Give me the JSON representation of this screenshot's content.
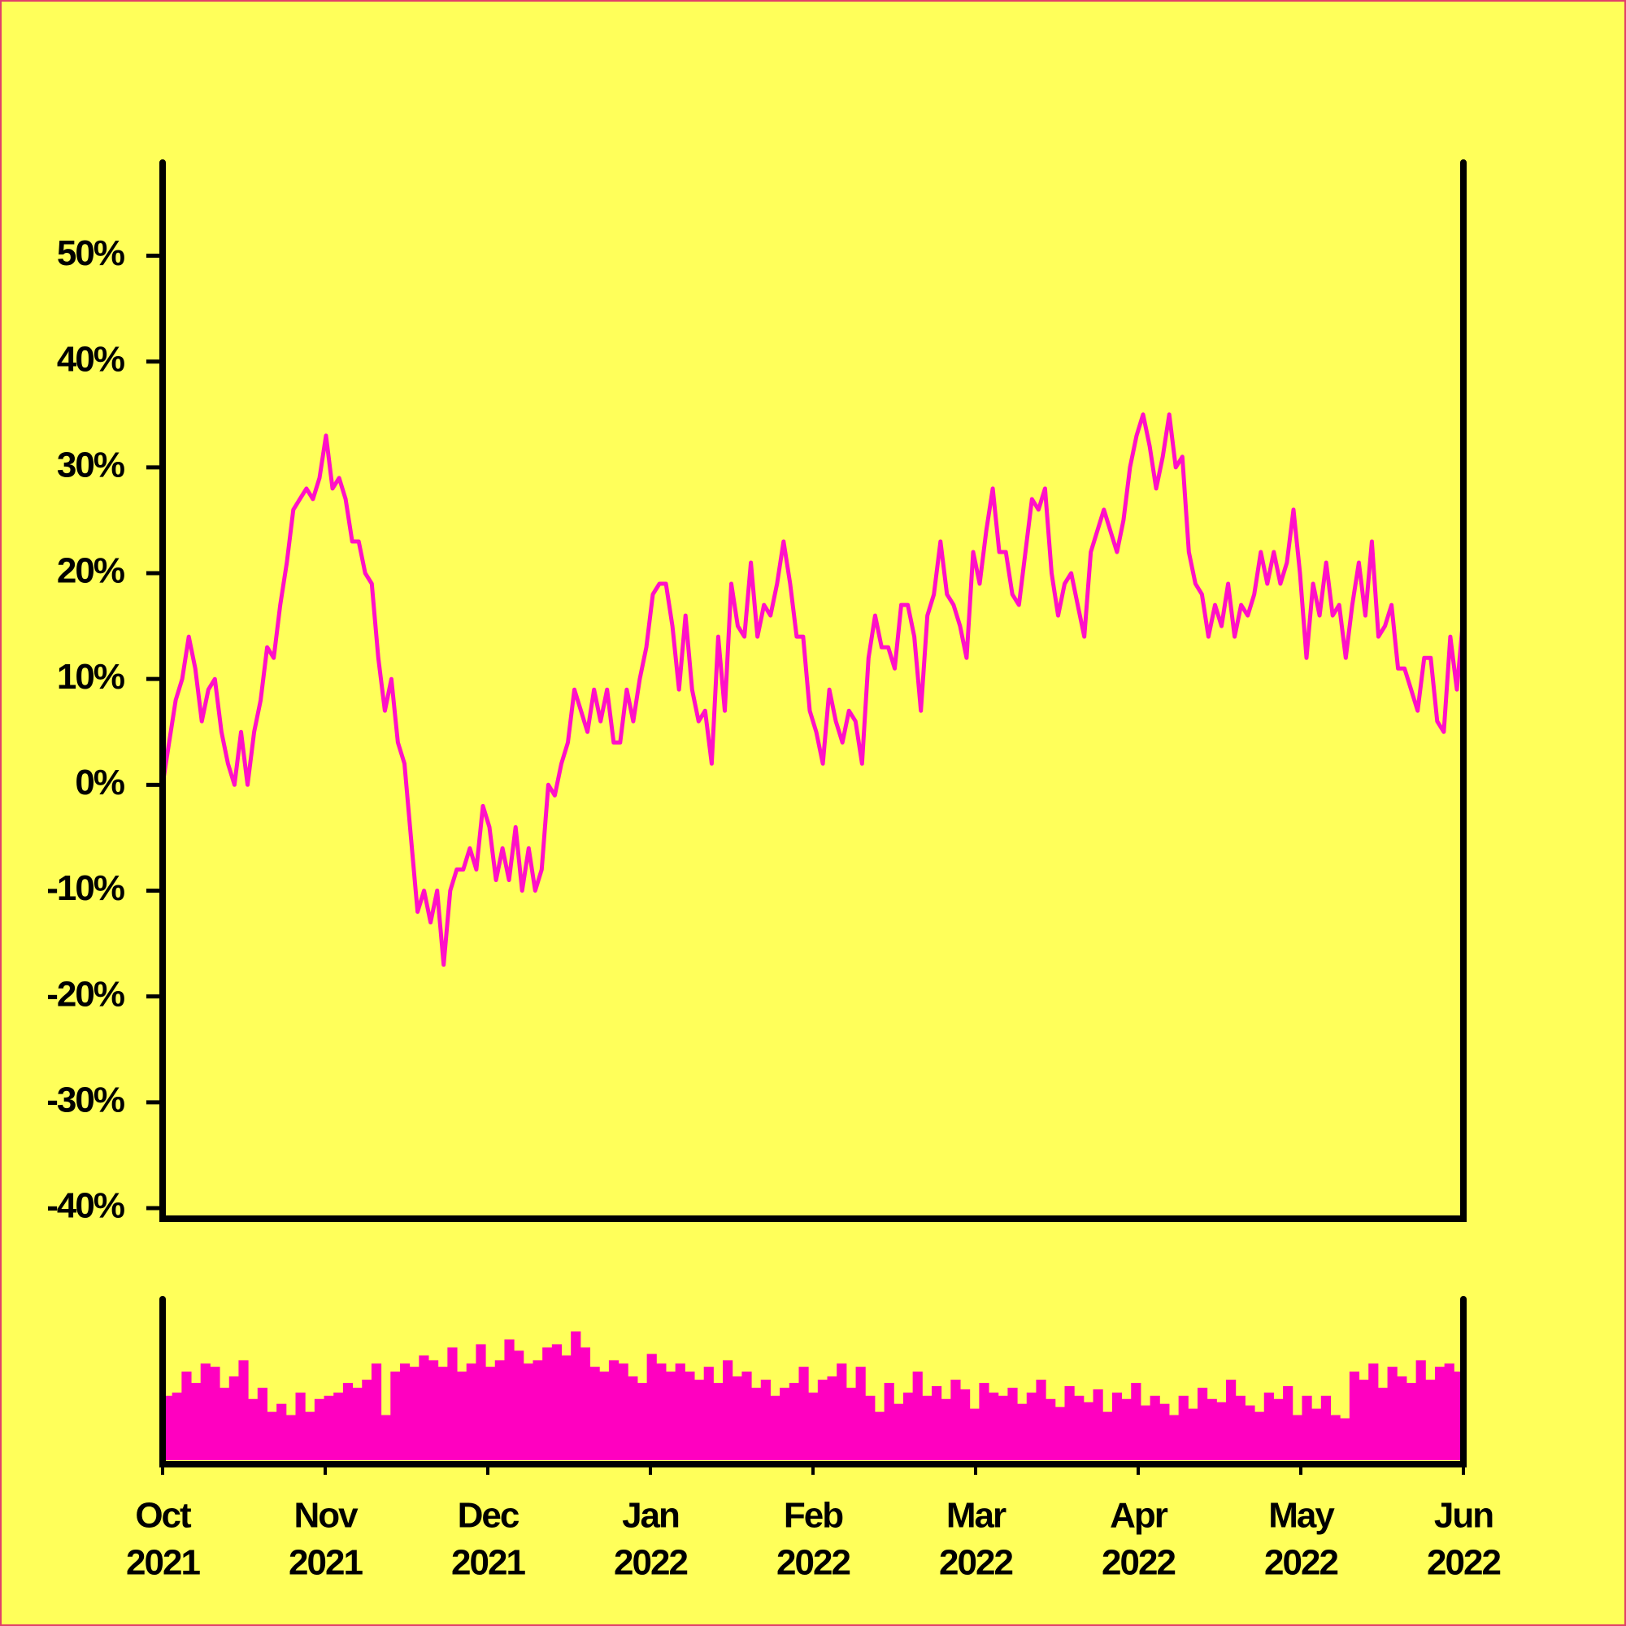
{
  "chart_data": [
    {
      "type": "line",
      "ylim": [
        -41,
        58.8
      ],
      "yticks": [
        {
          "value": -40,
          "label": "-40%"
        },
        {
          "value": -30,
          "label": "-30%"
        },
        {
          "value": -20,
          "label": "-20%"
        },
        {
          "value": -10,
          "label": "-10%"
        },
        {
          "value": 0,
          "label": "0%"
        },
        {
          "value": 10,
          "label": "10%"
        },
        {
          "value": 20,
          "label": "20%"
        },
        {
          "value": 30,
          "label": "30%"
        },
        {
          "value": 40,
          "label": "40%"
        },
        {
          "value": 50,
          "label": "50%"
        }
      ],
      "grid": false,
      "series": [
        {
          "color": "#ff10c8",
          "values": [
            0,
            4,
            8,
            10,
            14,
            11,
            6,
            9,
            10,
            5,
            2,
            0,
            5,
            0,
            5,
            8,
            13,
            12,
            17,
            21,
            26,
            27,
            28,
            27,
            29,
            33,
            28,
            29,
            27,
            23,
            23,
            20,
            19,
            12,
            7,
            10,
            4,
            2,
            -5,
            -12,
            -10,
            -13,
            -10,
            -17,
            -10,
            -8,
            -8,
            -6,
            -8,
            -2,
            -4,
            -9,
            -6,
            -9,
            -4,
            -10,
            -6,
            -10,
            -8,
            0,
            -1,
            2,
            4,
            9,
            7,
            5,
            9,
            6,
            9,
            4,
            4,
            9,
            6,
            10,
            13,
            18,
            19,
            19,
            15,
            9,
            16,
            9,
            6,
            7,
            2,
            14,
            7,
            19,
            15,
            14,
            21,
            14,
            17,
            16,
            19,
            23,
            19,
            14,
            14,
            7,
            5,
            2,
            9,
            6,
            4,
            7,
            6,
            2,
            12,
            16,
            13,
            13,
            11,
            17,
            17,
            14,
            7,
            16,
            18,
            23,
            18,
            17,
            15,
            12,
            22,
            19,
            24,
            28,
            22,
            22,
            18,
            17,
            22,
            27,
            26,
            28,
            20,
            16,
            19,
            20,
            17,
            14,
            22,
            24,
            26,
            24,
            22,
            25,
            30,
            33,
            35,
            32,
            28,
            31,
            35,
            30,
            31,
            22,
            19,
            18,
            14,
            17,
            15,
            19,
            14,
            17,
            16,
            18,
            22,
            19,
            22,
            19,
            21,
            26,
            20,
            12,
            19,
            16,
            21,
            16,
            17,
            12,
            17,
            21,
            16,
            23,
            14,
            15,
            17,
            11,
            11,
            9,
            7,
            12,
            12,
            6,
            5,
            14,
            9,
            16
          ]
        }
      ],
      "xtick_labels": [
        [
          "Oct",
          "2021"
        ],
        [
          "Nov",
          "2021"
        ],
        [
          "Dec",
          "2021"
        ],
        [
          "Jan",
          "2022"
        ],
        [
          "Feb",
          "2022"
        ],
        [
          "Mar",
          "2022"
        ],
        [
          "Apr",
          "2022"
        ],
        [
          "May",
          "2022"
        ],
        [
          "Jun",
          "2022"
        ]
      ]
    },
    {
      "type": "bar",
      "ylim": [
        0,
        100
      ],
      "color": "#ff00c0",
      "values": [
        40,
        42,
        55,
        48,
        60,
        58,
        45,
        52,
        62,
        38,
        45,
        30,
        35,
        28,
        42,
        30,
        38,
        40,
        42,
        48,
        45,
        50,
        60,
        28,
        55,
        60,
        58,
        65,
        62,
        58,
        70,
        55,
        60,
        72,
        58,
        62,
        75,
        68,
        60,
        62,
        70,
        72,
        65,
        80,
        70,
        58,
        55,
        62,
        60,
        52,
        48,
        66,
        60,
        55,
        60,
        55,
        50,
        58,
        48,
        62,
        52,
        55,
        45,
        50,
        40,
        45,
        48,
        58,
        42,
        50,
        52,
        60,
        45,
        58,
        40,
        30,
        48,
        35,
        42,
        55,
        40,
        46,
        38,
        50,
        44,
        32,
        48,
        42,
        40,
        45,
        35,
        42,
        50,
        38,
        33,
        46,
        40,
        36,
        44,
        30,
        42,
        38,
        48,
        34,
        40,
        35,
        28,
        40,
        32,
        45,
        38,
        36,
        50,
        40,
        34,
        30,
        42,
        38,
        46,
        28,
        40,
        32,
        40,
        28,
        26,
        55,
        50,
        60,
        45,
        58,
        52,
        48,
        62,
        50,
        58,
        60,
        55
      ]
    }
  ]
}
